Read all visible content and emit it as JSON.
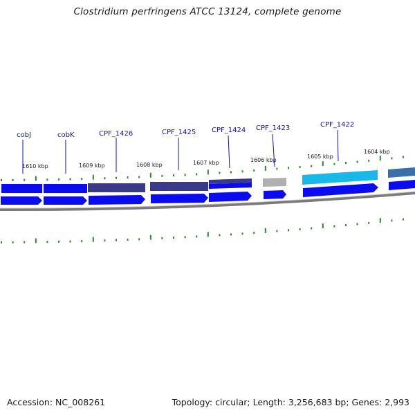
{
  "title": "Clostridium perfringens ATCC 13124, complete genome",
  "footer": {
    "accession": "Accession: NC_008261",
    "summary": "Topology: circular; Length: 3,256,683 bp; Genes: 2,993"
  },
  "colors": {
    "gene_blue": "#0b0bf0",
    "gene_slate": "#3a3a8c",
    "gene_grey": "#b0b0b0",
    "gene_cyan": "#18b8e8",
    "gene_steel": "#3a6fa8",
    "tick_green": "#2a8a2a",
    "backbone": "#7a7a7a",
    "label_blue": "#1010b0"
  },
  "kbp_labels": [
    "1610 kbp",
    "1609 kbp",
    "1608 kbp",
    "1607 kbp",
    "1606 kbp",
    "1605 kbp",
    "1604 kbp"
  ],
  "gene_labels": [
    "cobJ",
    "cobK",
    "CPF_1426",
    "CPF_1425",
    "CPF_1424",
    "CPF_1423",
    "CPF_1422"
  ]
}
